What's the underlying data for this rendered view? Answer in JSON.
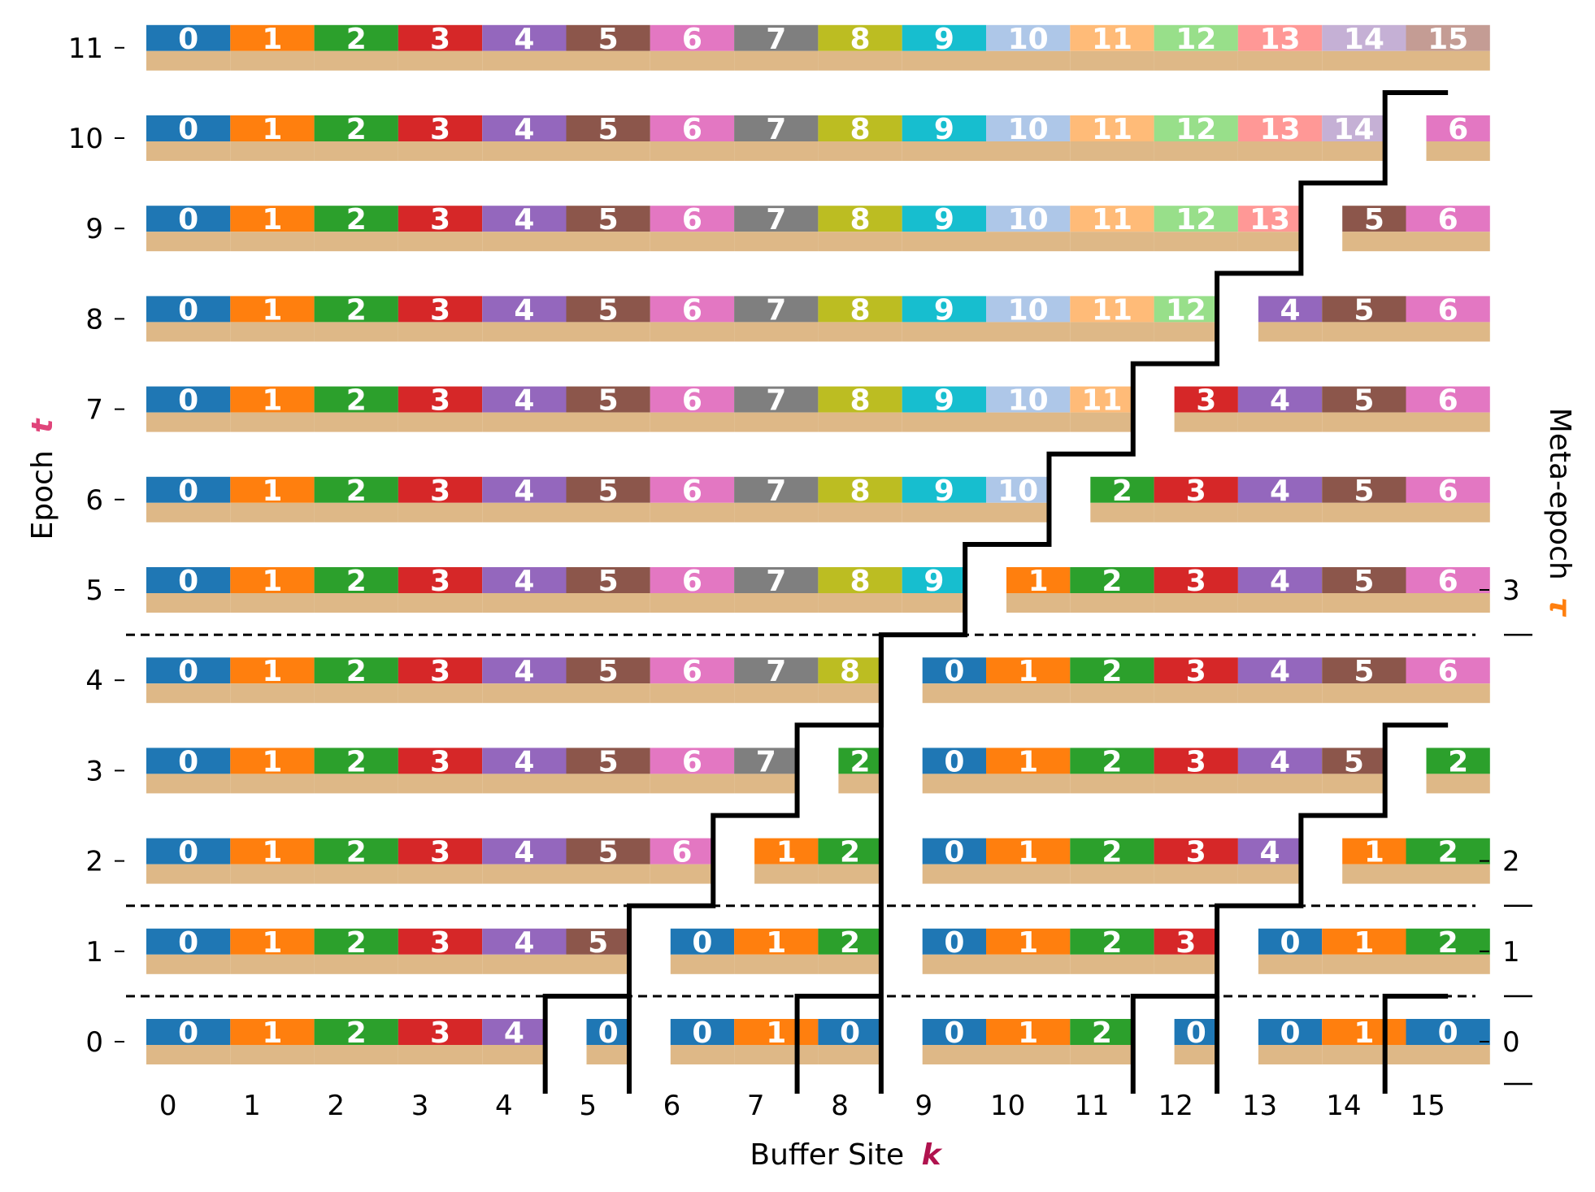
{
  "xlabel": {
    "text": "Buffer Site",
    "symbol": "k",
    "symbol_color": "#b0124e"
  },
  "ylabel": {
    "text": "Epoch",
    "symbol": "t",
    "symbol_color": "#e0447a"
  },
  "rlabel": {
    "text": "Meta-epoch",
    "symbol": "τ",
    "symbol_color": "#ff7f0e"
  },
  "x_ticks": [
    "0",
    "1",
    "2",
    "3",
    "4",
    "5",
    "6",
    "7",
    "8",
    "9",
    "10",
    "11",
    "12",
    "13",
    "14",
    "15"
  ],
  "y_ticks": [
    "0",
    "1",
    "2",
    "3",
    "4",
    "5",
    "6",
    "7",
    "8",
    "9",
    "10",
    "11"
  ],
  "meta_epoch_ticks": [
    {
      "label": "0",
      "epoch": 0
    },
    {
      "label": "1",
      "epoch": 1
    },
    {
      "label": "2",
      "epoch": 2
    },
    {
      "label": "3",
      "epoch": 5
    }
  ],
  "meta_epoch_boundaries_after_epoch": [
    0,
    1,
    4
  ],
  "palette": [
    "#1f77b4",
    "#ff7f0e",
    "#2ca02c",
    "#d62728",
    "#9467bd",
    "#8c564b",
    "#e377c2",
    "#7f7f7f",
    "#bcbd22",
    "#17becf",
    "#aec7e8",
    "#ffbb78",
    "#98df8a",
    "#ff9896",
    "#c5b0d5",
    "#c49c94"
  ],
  "base_color": "#deb887",
  "buffer_rows": [
    [
      "0",
      "1",
      "2",
      "3",
      "4",
      "0",
      "0",
      "1",
      "0",
      "0",
      "1",
      "2",
      "0",
      "0",
      "1",
      "0"
    ],
    [
      "0",
      "1",
      "2",
      "3",
      "4",
      "5",
      "0",
      "1",
      "2",
      "0",
      "1",
      "2",
      "3",
      "0",
      "1",
      "2"
    ],
    [
      "0",
      "1",
      "2",
      "3",
      "4",
      "5",
      "6",
      "1",
      "2",
      "0",
      "1",
      "2",
      "3",
      "4",
      "1",
      "2"
    ],
    [
      "0",
      "1",
      "2",
      "3",
      "4",
      "5",
      "6",
      "7",
      "2",
      "0",
      "1",
      "2",
      "3",
      "4",
      "5",
      "2"
    ],
    [
      "0",
      "1",
      "2",
      "3",
      "4",
      "5",
      "6",
      "7",
      "8",
      "0",
      "1",
      "2",
      "3",
      "4",
      "5",
      "6"
    ],
    [
      "0",
      "1",
      "2",
      "3",
      "4",
      "5",
      "6",
      "7",
      "8",
      "9",
      "1",
      "2",
      "3",
      "4",
      "5",
      "6"
    ],
    [
      "0",
      "1",
      "2",
      "3",
      "4",
      "5",
      "6",
      "7",
      "8",
      "9",
      "10",
      "2",
      "3",
      "4",
      "5",
      "6"
    ],
    [
      "0",
      "1",
      "2",
      "3",
      "4",
      "5",
      "6",
      "7",
      "8",
      "9",
      "10",
      "11",
      "3",
      "4",
      "5",
      "6"
    ],
    [
      "0",
      "1",
      "2",
      "3",
      "4",
      "5",
      "6",
      "7",
      "8",
      "9",
      "10",
      "11",
      "12",
      "4",
      "5",
      "6"
    ],
    [
      "0",
      "1",
      "2",
      "3",
      "4",
      "5",
      "6",
      "7",
      "8",
      "9",
      "10",
      "11",
      "12",
      "13",
      "5",
      "6"
    ],
    [
      "0",
      "1",
      "2",
      "3",
      "4",
      "5",
      "6",
      "7",
      "8",
      "9",
      "10",
      "11",
      "12",
      "13",
      "14",
      "6"
    ],
    [
      "0",
      "1",
      "2",
      "3",
      "4",
      "5",
      "6",
      "7",
      "8",
      "9",
      "10",
      "11",
      "12",
      "13",
      "14",
      "15"
    ]
  ]
}
